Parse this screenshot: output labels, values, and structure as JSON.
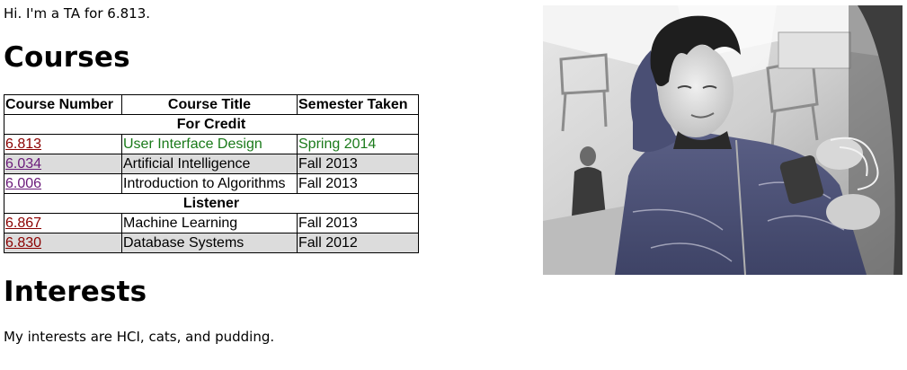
{
  "intro": "Hi. I'm a TA for 6.813.",
  "courses": {
    "heading": "Courses",
    "table": {
      "headers": [
        "Course Number",
        "Course Title",
        "Semester Taken"
      ],
      "sections": [
        {
          "label": "For Credit",
          "rows": [
            {
              "number": "6.813",
              "title": "User Interface Design",
              "semester": "Spring 2014"
            },
            {
              "number": "6.034",
              "title": "Artificial Intelligence",
              "semester": "Fall 2013"
            },
            {
              "number": "6.006",
              "title": "Introduction to Algorithms",
              "semester": "Fall 2013"
            }
          ]
        },
        {
          "label": "Listener",
          "rows": [
            {
              "number": "6.867",
              "title": "Machine Learning",
              "semester": "Fall 2013"
            },
            {
              "number": "6.830",
              "title": "Database Systems",
              "semester": "Fall 2012"
            }
          ]
        }
      ]
    }
  },
  "interests": {
    "heading": "Interests",
    "text": "My interests are HCI, cats, and pudding."
  },
  "colors": {
    "current_course": "#1a7a1a",
    "shaded_row": "#dcdcdc",
    "link_unvisited": "#8b0000",
    "link_visited": "#6a1a7a"
  }
}
